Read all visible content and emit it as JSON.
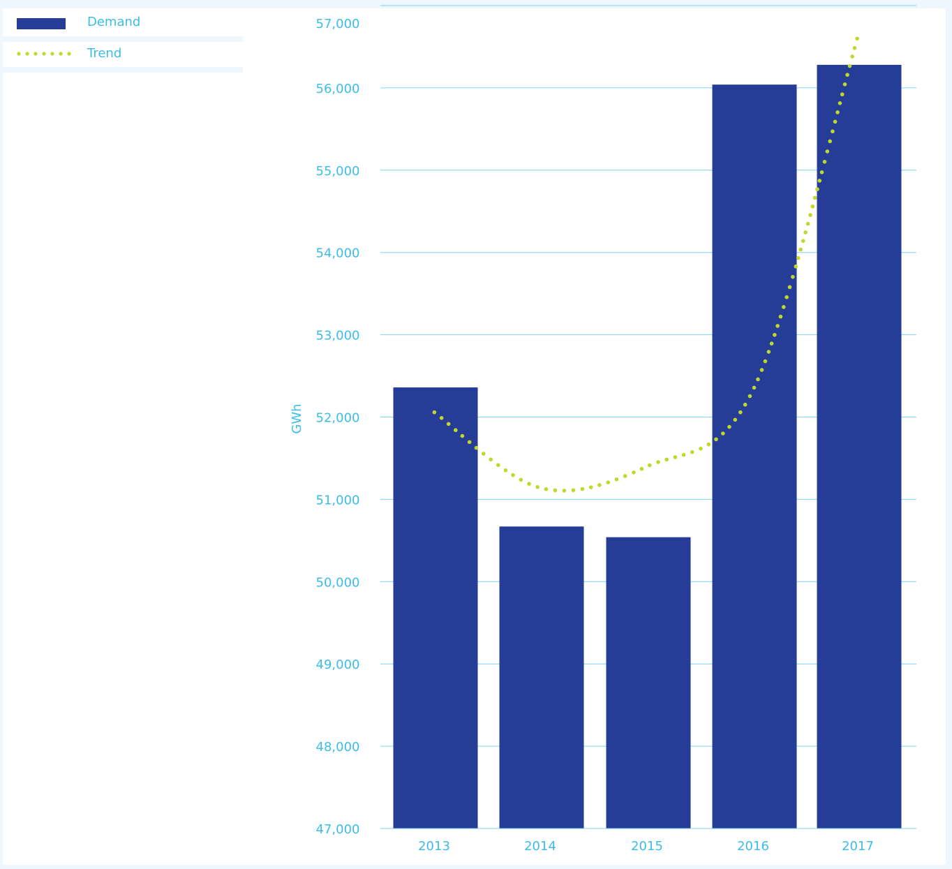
{
  "legend": {
    "items": [
      {
        "label": "Demand",
        "kind": "bar",
        "color": "#253d96"
      },
      {
        "label": "Trend",
        "kind": "dotted-line",
        "color": "#c0d82c"
      }
    ]
  },
  "colors": {
    "bar": "#253d96",
    "trend": "#c0d82c",
    "grid": "#7fd1ef",
    "text": "#3bbde8"
  },
  "chart_data": {
    "type": "bar",
    "title": "",
    "xlabel": "",
    "ylabel": "GWh",
    "categories": [
      "2013",
      "2014",
      "2015",
      "2016",
      "2017"
    ],
    "series": [
      {
        "name": "Demand",
        "values": [
          52360,
          50670,
          50540,
          56040,
          56280
        ]
      },
      {
        "name": "Trend",
        "type": "line",
        "style": "dotted",
        "values": [
          52060,
          51140,
          51400,
          52330,
          56620
        ]
      }
    ],
    "ylim": [
      47000,
      57000
    ],
    "yticks": [
      "47,000",
      "48,000",
      "49,000",
      "50,000",
      "51,000",
      "52,000",
      "53,000",
      "54,000",
      "55,000",
      "56,000",
      "57,000"
    ],
    "grid": true,
    "legend_position": "top-left"
  }
}
